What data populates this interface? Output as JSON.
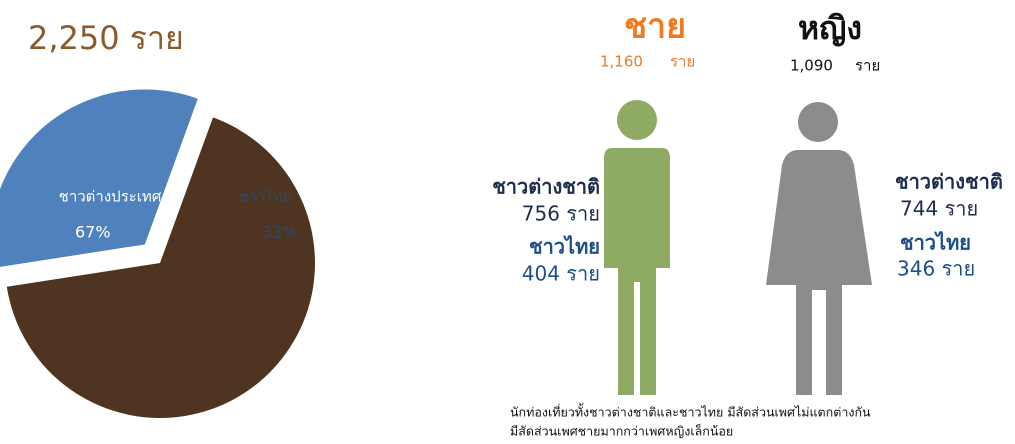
{
  "chart_data": {
    "type": "pie",
    "title": "2,250 ราย",
    "categories": [
      "ชาวต่างประเทศ",
      "ชาวไทย"
    ],
    "values": [
      67,
      33
    ],
    "value_labels": [
      "67%",
      "33%"
    ],
    "colors": [
      "#4e3421",
      "#4f81bd"
    ]
  },
  "infographic": {
    "male": {
      "title": "ชาย",
      "count": "1,160",
      "unit": "ราย",
      "foreign_label": "ชาวต่างชาติ",
      "foreign_count": "756 ราย",
      "thai_label": "ชาวไทย",
      "thai_count": "404 ราย"
    },
    "female": {
      "title": "หญิง",
      "count": "1,090",
      "unit": "ราย",
      "foreign_label": "ชาวต่างชาติ",
      "foreign_count": "744 ราย",
      "thai_label": "ชาวไทย",
      "thai_count": "346 ราย"
    },
    "caption": [
      "นักท่องเที่ยวทั้งชาวต่างชาติและชาวไทย มีสัดส่วนเพศไม่แตกต่างกัน",
      "มีสัดส่วนเพศชายมากกว่าเพศหญิงเล็กน้อย"
    ]
  }
}
